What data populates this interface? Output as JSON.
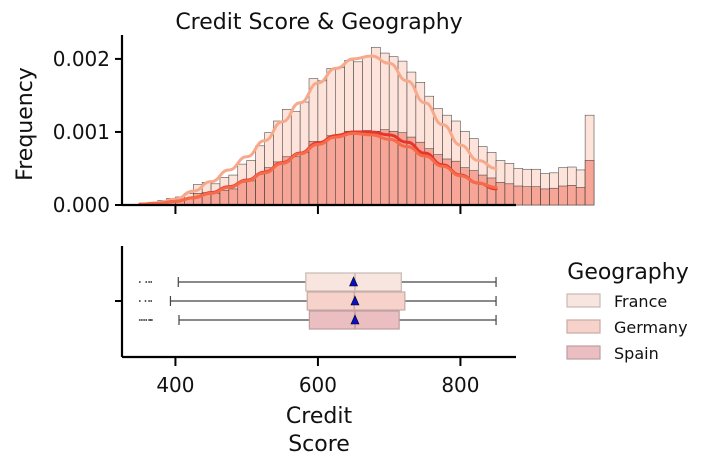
{
  "chart_data": [
    {
      "type": "bar",
      "subtype": "stacked-histogram-with-kde",
      "title": "Credit Score & Geography",
      "ylabel": "Frequency",
      "xlim": [
        325,
        878
      ],
      "ylim": [
        0,
        0.0023
      ],
      "yticks": [
        "0.000",
        "0.001",
        "0.002"
      ],
      "ytick_values": [
        0,
        0.001,
        0.002
      ],
      "xticks": [
        400,
        600,
        800
      ],
      "bin_start": 350,
      "bin_width": 12.5,
      "bin_totals": [
        3e-05,
        3e-05,
        6e-05,
        9e-05,
        0.00011,
        0.00016,
        0.00028,
        0.00031,
        0.00029,
        0.00038,
        0.00041,
        0.00056,
        0.00061,
        0.00081,
        0.00099,
        0.00115,
        0.00131,
        0.00128,
        0.00141,
        0.00173,
        0.0017,
        0.00187,
        0.00188,
        0.00198,
        0.00196,
        0.00203,
        0.00216,
        0.00208,
        0.00203,
        0.00197,
        0.00182,
        0.00168,
        0.00149,
        0.00132,
        0.00123,
        0.00115,
        0.00101,
        0.00091,
        0.0008,
        0.00072,
        0.00061,
        0.00057,
        0.0005,
        0.00049,
        0.00049,
        0.00043,
        0.00044,
        0.00051,
        0.00052,
        0.00048,
        0.00123
      ],
      "bin_inner": [
        2e-05,
        2e-05,
        4e-05,
        6e-05,
        7e-05,
        9e-05,
        0.00016,
        0.00017,
        0.00016,
        0.0002,
        0.00022,
        0.00031,
        0.00033,
        0.00042,
        0.00051,
        0.00059,
        0.00066,
        0.00066,
        0.00072,
        0.00087,
        0.00087,
        0.00095,
        0.00096,
        0.00101,
        0.00098,
        0.00102,
        0.00101,
        0.00103,
        0.00101,
        0.00099,
        0.00093,
        0.00086,
        0.00077,
        0.00069,
        0.00063,
        0.0006,
        0.00051,
        0.00047,
        0.00041,
        0.00037,
        0.00031,
        0.00029,
        0.00026,
        0.00025,
        0.00025,
        0.00022,
        0.00023,
        0.00026,
        0.00027,
        0.00024,
        0.00061
      ],
      "kde_lines": [
        {
          "color": "#f7a98c",
          "x": [
            350,
            375,
            400,
            425,
            450,
            475,
            500,
            525,
            550,
            575,
            600,
            625,
            650,
            675,
            700,
            725,
            750,
            775,
            800,
            825,
            850
          ],
          "y": [
            1e-05,
            3e-05,
            8e-05,
            0.00019,
            0.00032,
            0.00048,
            0.00066,
            0.00088,
            0.00114,
            0.0014,
            0.00167,
            0.00187,
            0.002,
            0.00204,
            0.00194,
            0.0017,
            0.0014,
            0.0011,
            0.00082,
            0.00061,
            0.0005
          ]
        },
        {
          "color": "#e8352b",
          "x": [
            350,
            375,
            400,
            425,
            450,
            475,
            500,
            525,
            550,
            575,
            600,
            625,
            650,
            675,
            700,
            725,
            750,
            775,
            800,
            825,
            850
          ],
          "y": [
            1e-05,
            2e-05,
            5e-05,
            0.0001,
            0.00017,
            0.00025,
            0.00034,
            0.00045,
            0.00058,
            0.00071,
            0.00085,
            0.00095,
            0.001,
            0.001,
            0.00096,
            0.00086,
            0.00071,
            0.00055,
            0.00041,
            0.0003,
            0.00022
          ]
        },
        {
          "color": "#f66a4a",
          "x": [
            350,
            375,
            400,
            425,
            450,
            475,
            500,
            525,
            550,
            575,
            600,
            625,
            650,
            675,
            700,
            725,
            750,
            775,
            800,
            825,
            850
          ],
          "y": [
            1e-05,
            2e-05,
            5e-05,
            0.0001,
            0.00016,
            0.00024,
            0.00033,
            0.00044,
            0.00057,
            0.0007,
            0.00083,
            0.00093,
            0.00098,
            0.00096,
            0.0009,
            0.0008,
            0.00067,
            0.00053,
            0.0004,
            0.0003,
            0.00024
          ]
        }
      ]
    },
    {
      "type": "boxplot",
      "xlabel": "Credit\nScore",
      "xlim": [
        325,
        878
      ],
      "xticks": [
        400,
        600,
        800
      ],
      "legend": {
        "title": "Geography",
        "placement": "right"
      },
      "series": [
        {
          "name": "France",
          "color": "#f9e5df",
          "edge": "#c9b8b3",
          "whisker_low": 404,
          "q1": 583,
          "median": 652,
          "mean": 650,
          "q3": 717,
          "whisker_high": 850,
          "outliers": [
            350,
            359,
            363,
            366
          ]
        },
        {
          "name": "Germany",
          "color": "#f6d2cb",
          "edge": "#c6aaa4",
          "whisker_low": 393,
          "q1": 585,
          "median": 651,
          "mean": 652,
          "q3": 722,
          "whisker_high": 850,
          "outliers": [
            350,
            358,
            363,
            366
          ]
        },
        {
          "name": "Spain",
          "color": "#ebbfc1",
          "edge": "#bd9da0",
          "whisker_low": 405,
          "q1": 588,
          "median": 652,
          "mean": 652,
          "q3": 714,
          "whisker_high": 850,
          "outliers": [
            350,
            353,
            356,
            359,
            363,
            365,
            367
          ]
        }
      ]
    }
  ]
}
